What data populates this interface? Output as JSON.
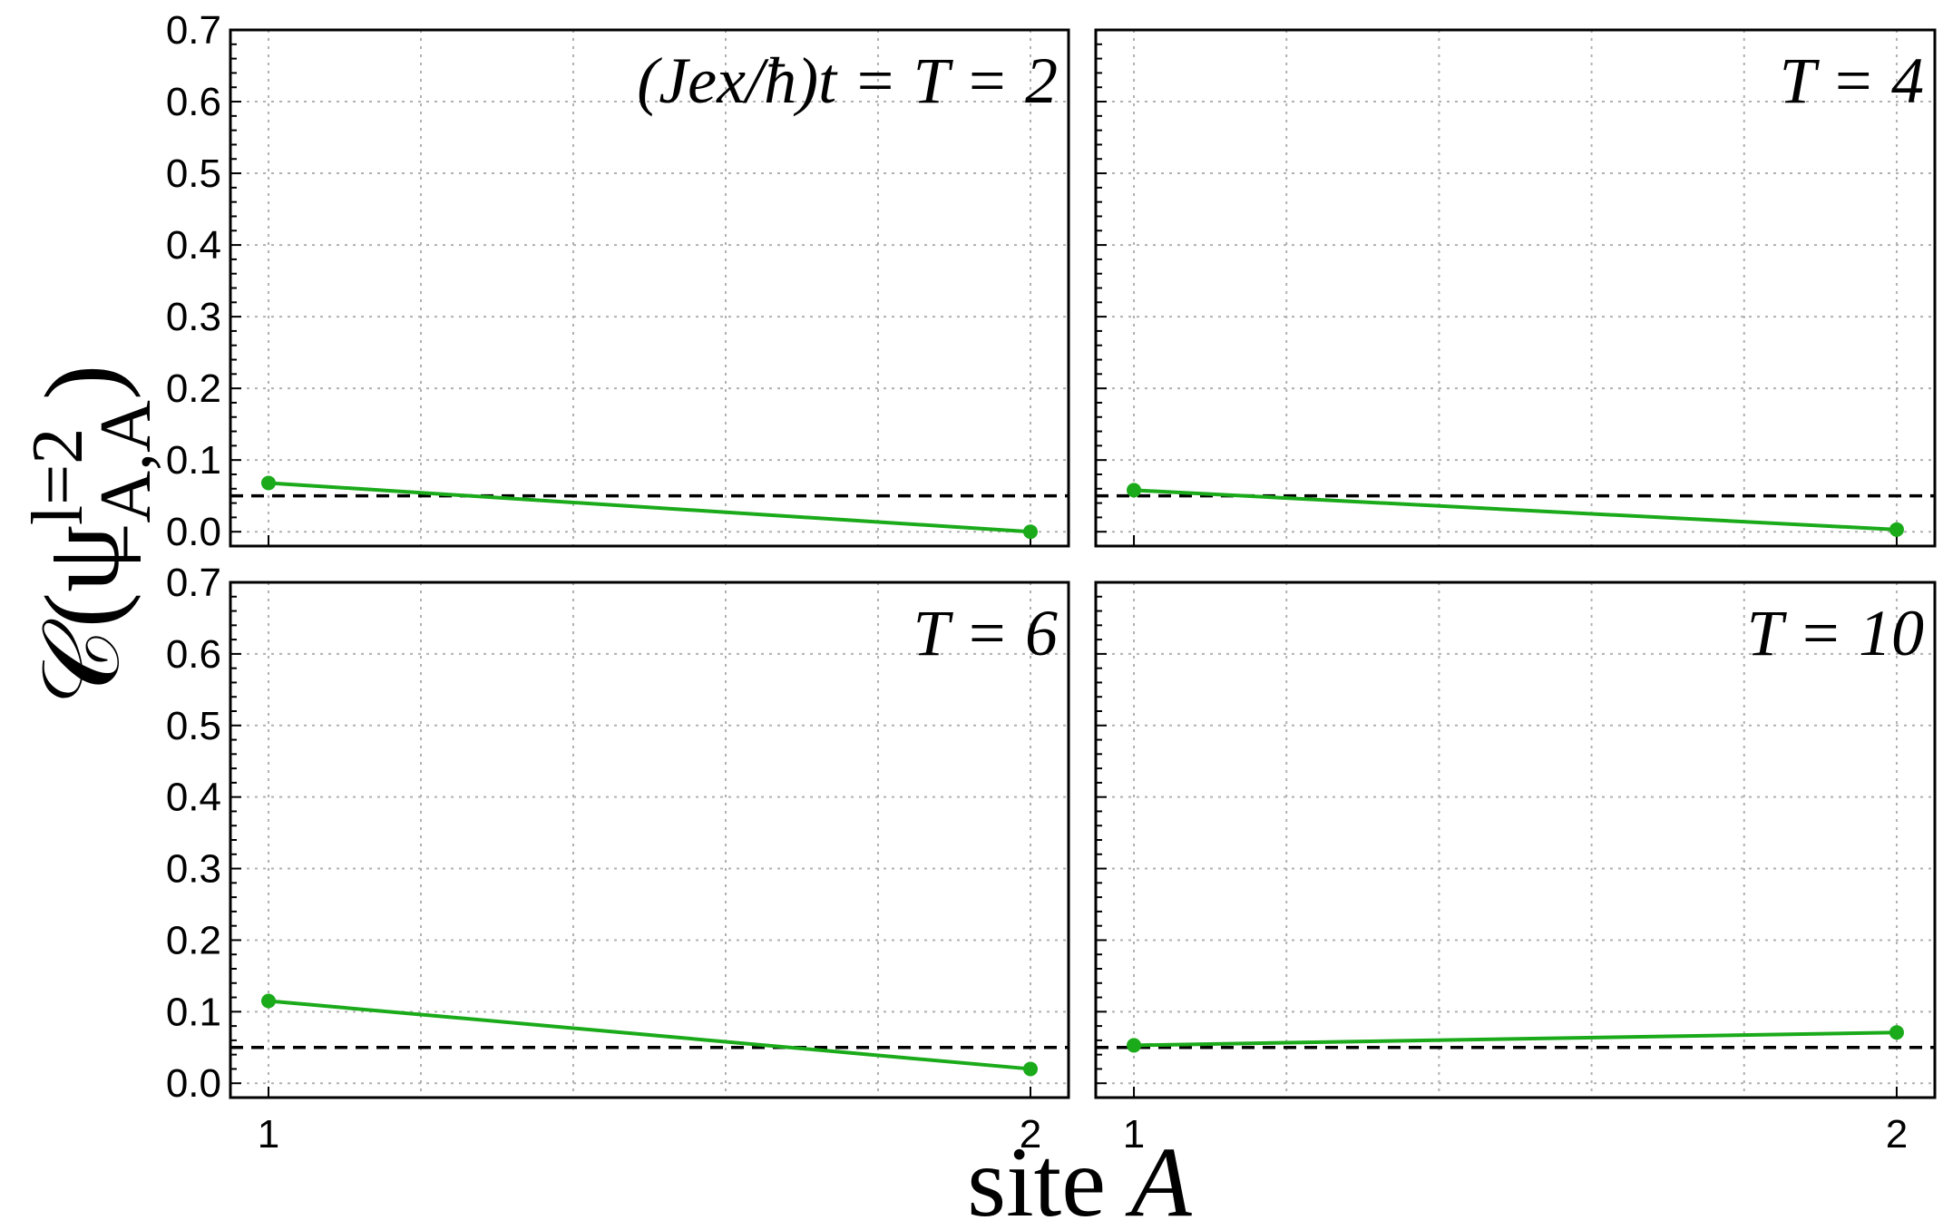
{
  "chart_data": {
    "type": "line",
    "x_title_prefix": "site",
    "x_title_var": "A",
    "y_title": "𝒞(ψ",
    "y_title_sup": "l=2",
    "y_title_sub": "−A,A",
    "y_title_close": ")",
    "ylim": [
      -0.02,
      0.7
    ],
    "yticks": [
      0.0,
      0.1,
      0.2,
      0.3,
      0.4,
      0.5,
      0.6,
      0.7
    ],
    "ytick_labels": [
      "0.0",
      "0.1",
      "0.2",
      "0.3",
      "0.4",
      "0.5",
      "0.6",
      "0.7"
    ],
    "xlim": [
      0.95,
      2.05
    ],
    "xticks": [
      1,
      2
    ],
    "xtick_labels": [
      "1",
      "2"
    ],
    "grid": true,
    "reference_line": 0.05,
    "series_color": "#1aaa1a",
    "panels": [
      {
        "label": "(Jex/ħ)t = T = 2",
        "x": [
          1,
          2
        ],
        "y": [
          0.068,
          0.0
        ]
      },
      {
        "label": "T = 4",
        "x": [
          1,
          2
        ],
        "y": [
          0.058,
          0.003
        ]
      },
      {
        "label": "T = 6",
        "x": [
          1,
          2
        ],
        "y": [
          0.115,
          0.02
        ]
      },
      {
        "label": "T = 10",
        "x": [
          1,
          2
        ],
        "y": [
          0.053,
          0.071
        ]
      }
    ]
  }
}
